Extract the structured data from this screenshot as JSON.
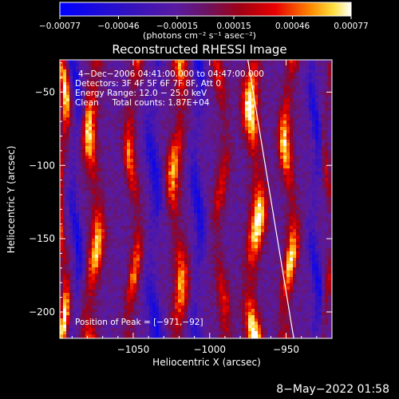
{
  "chart_data": {
    "type": "heatmap",
    "title": "Reconstructed RHESSI Image",
    "xlabel": "Heliocentric X (arcsec)",
    "ylabel": "Heliocentric Y (arcsec)",
    "xlim": [
      -1098,
      -920
    ],
    "ylim": [
      -218,
      -28
    ],
    "xticks": [
      -1050,
      -1000,
      -950
    ],
    "xtick_labels": [
      "−1050",
      "−1000",
      "−950"
    ],
    "yticks": [
      -50,
      -100,
      -150,
      -200
    ],
    "ytick_labels": [
      "−50",
      "−100",
      "−150",
      "−200"
    ],
    "colorbar": {
      "min": -0.00077,
      "max": 0.00077,
      "ticks": [
        -0.00077,
        -0.00046,
        -0.00015,
        0.00015,
        0.00046,
        0.00077
      ],
      "tick_labels": [
        "−0.00077",
        "−0.00046",
        "−0.00015",
        "0.00015",
        "0.00046",
        "0.00077"
      ],
      "units": "(photons cm⁻² s⁻¹ asec⁻²)"
    },
    "annotations": [
      "4−Dec−2006 04:41:00.000 to 04:47:00.000",
      "Detectors: 3F 4F 5F 6F 7F 8F, Att 0",
      "Energy Range: 12.0 − 25.0 keV",
      "Clean     Total counts: 1.87E+04"
    ],
    "peak_label": "Position of Peak = [−971,−92]",
    "peak": [
      -971,
      -92
    ],
    "limb_line": [
      [
        -975,
        -28
      ],
      [
        -945,
        -218
      ]
    ],
    "footer": "8−May−2022 01:58"
  }
}
